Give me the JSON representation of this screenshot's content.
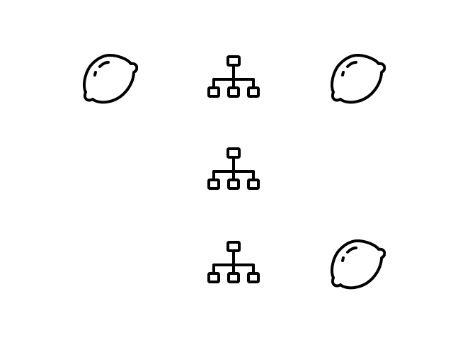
{
  "grid": {
    "rows": [
      [
        "lemon-icon",
        "sitemap-icon",
        "lemon-icon"
      ],
      [
        "",
        "sitemap-icon",
        ""
      ],
      [
        "",
        "sitemap-icon",
        "lemon-icon"
      ]
    ]
  },
  "colors": {
    "background": "#ffffff",
    "icon_stroke": "#000000"
  }
}
